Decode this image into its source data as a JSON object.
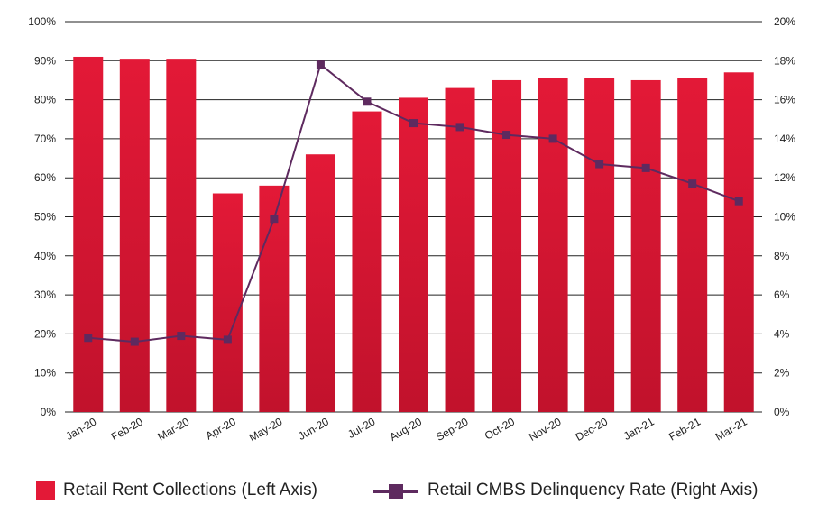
{
  "chart_data": {
    "type": "bar",
    "categories": [
      "Jan-20",
      "Feb-20",
      "Mar-20",
      "Apr-20",
      "May-20",
      "Jun-20",
      "Jul-20",
      "Aug-20",
      "Sep-20",
      "Oct-20",
      "Nov-20",
      "Dec-20",
      "Jan-21",
      "Feb-21",
      "Mar-21"
    ],
    "series": [
      {
        "name": "Retail Rent Collections (Left Axis)",
        "type": "bar",
        "axis": "left",
        "color": "#e31937",
        "values": [
          91,
          90.5,
          90.5,
          56,
          58,
          66,
          77,
          80.5,
          83,
          85,
          85.5,
          85.5,
          85,
          85.5,
          87
        ]
      },
      {
        "name": "Retail CMBS Delinquency Rate (Right Axis)",
        "type": "line",
        "axis": "right",
        "color": "#5e2a5f",
        "values": [
          3.8,
          3.6,
          3.9,
          3.7,
          9.9,
          17.8,
          15.9,
          14.8,
          14.6,
          14.2,
          14.0,
          12.7,
          12.5,
          11.7,
          10.8
        ]
      }
    ],
    "left_axis": {
      "ylim": [
        0,
        100
      ],
      "ticks": [
        "0%",
        "10%",
        "20%",
        "30%",
        "40%",
        "50%",
        "60%",
        "70%",
        "80%",
        "90%",
        "100%"
      ]
    },
    "right_axis": {
      "ylim": [
        0,
        20
      ],
      "ticks": [
        "0%",
        "2%",
        "4%",
        "6%",
        "8%",
        "10%",
        "12%",
        "14%",
        "16%",
        "18%",
        "20%"
      ]
    },
    "grid": true,
    "legend_position": "bottom"
  },
  "legend": {
    "bar_label": "Retail Rent Collections (Left Axis)",
    "line_label": "Retail CMBS Delinquency Rate (Right Axis)"
  },
  "colors": {
    "bar_top": "#e31937",
    "bar_bottom": "#c1122c",
    "line": "#5e2a5f",
    "grid": "#222222"
  }
}
